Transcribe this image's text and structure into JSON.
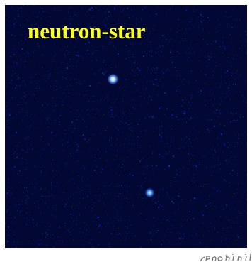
{
  "image": {
    "label": "neutron-star",
    "label_color": "#ffff22",
    "background_color": "#020733",
    "source_color": "#bfe8ff"
  }
}
